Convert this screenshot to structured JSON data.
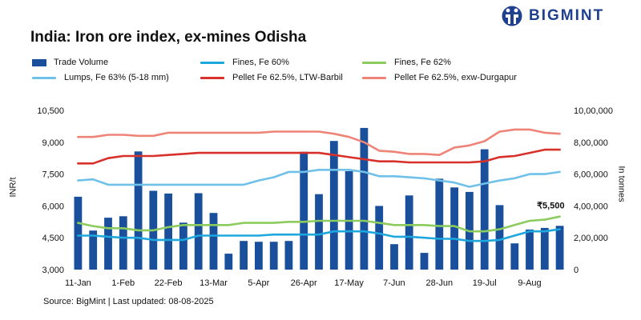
{
  "title": "India: Iron ore index, ex-mines Odisha",
  "logo_text": "BIGMINT",
  "source": "Source: BigMint | Last updated: 08-08-2025",
  "colors": {
    "trade_volume": "#1a4f9c",
    "fines_60": "#1ea7dd",
    "fines_62": "#8ccc5e",
    "lumps_63": "#6fc1ea",
    "pellet_barbil": "#d8302a",
    "pellet_durgapur": "#ee8478",
    "logo": "#1f3f8f"
  },
  "chart_data": {
    "type": "bar+line",
    "x_tick_labels": [
      "11-Jan",
      "1-Feb",
      "22-Feb",
      "13-Mar",
      "5-Apr",
      "26-Apr",
      "17-May",
      "7-Jun",
      "28-Jun",
      "19-Jul",
      "9-Aug"
    ],
    "y_left": {
      "label": "INR/t",
      "ticks": [
        "3,000",
        "4,500",
        "6,000",
        "7,500",
        "9,000",
        "10,500"
      ],
      "range": [
        3000,
        10500
      ]
    },
    "y_right": {
      "label": "In tonnes",
      "ticks": [
        "0",
        "2,00,000",
        "4,00,000",
        "6,00,000",
        "8,00,000",
        "10,00,000"
      ],
      "range": [
        0,
        1000000
      ]
    },
    "annotation": "₹5,500",
    "series": [
      {
        "name": "Trade Volume",
        "kind": "bar",
        "axis": "right",
        "values": [
          458000,
          245000,
          326000,
          335000,
          742000,
          495000,
          478000,
          295000,
          480000,
          356000,
          100000,
          180000,
          175000,
          175000,
          180000,
          740000,
          474000,
          808000,
          618000,
          890000,
          400000,
          160000,
          466000,
          105000,
          571000,
          516000,
          488000,
          756000,
          405000,
          165000,
          252000,
          262000,
          275000
        ]
      },
      {
        "name": "Fines, Fe 60%",
        "kind": "line",
        "axis": "left",
        "values": [
          4600,
          4600,
          4550,
          4500,
          4500,
          4400,
          4400,
          4400,
          4600,
          4600,
          4600,
          4600,
          4600,
          4650,
          4650,
          4650,
          4650,
          4800,
          4800,
          4800,
          4700,
          4550,
          4550,
          4500,
          4450,
          4450,
          4350,
          4350,
          4400,
          4600,
          4800,
          4800,
          4900
        ]
      },
      {
        "name": "Fines, Fe 62%",
        "kind": "line",
        "axis": "left",
        "values": [
          5200,
          5050,
          4950,
          4950,
          4850,
          4850,
          5000,
          5100,
          5100,
          5100,
          5100,
          5200,
          5200,
          5200,
          5250,
          5250,
          5300,
          5300,
          5300,
          5300,
          5200,
          5100,
          5100,
          5100,
          5050,
          5050,
          4800,
          4800,
          4900,
          5100,
          5300,
          5350,
          5500
        ]
      },
      {
        "name": "Lumps, Fe 63% (5-18 mm)",
        "kind": "line",
        "axis": "left",
        "values": [
          7200,
          7250,
          7000,
          7000,
          7000,
          7000,
          7000,
          7000,
          7000,
          7000,
          7000,
          7000,
          7200,
          7350,
          7600,
          7600,
          7700,
          7700,
          7700,
          7600,
          7400,
          7400,
          7350,
          7300,
          7200,
          7100,
          6900,
          7050,
          7200,
          7300,
          7500,
          7500,
          7600
        ]
      },
      {
        "name": "Pellet Fe 62.5%, LTW-Barbil",
        "kind": "line",
        "axis": "left",
        "values": [
          8000,
          8000,
          8250,
          8350,
          8350,
          8350,
          8400,
          8450,
          8500,
          8500,
          8500,
          8500,
          8500,
          8500,
          8500,
          8500,
          8500,
          8400,
          8300,
          8200,
          8100,
          8100,
          8050,
          8050,
          8050,
          8050,
          8050,
          8100,
          8300,
          8350,
          8500,
          8650,
          8650
        ]
      },
      {
        "name": "Pellet Fe  62.5%, exw-Durgapur",
        "kind": "line",
        "axis": "left",
        "values": [
          9250,
          9250,
          9350,
          9350,
          9300,
          9300,
          9450,
          9450,
          9450,
          9450,
          9450,
          9450,
          9450,
          9500,
          9500,
          9500,
          9500,
          9400,
          9250,
          9000,
          8600,
          8550,
          8450,
          8450,
          8400,
          8750,
          8850,
          9050,
          9500,
          9600,
          9600,
          9450,
          9400
        ]
      }
    ]
  }
}
